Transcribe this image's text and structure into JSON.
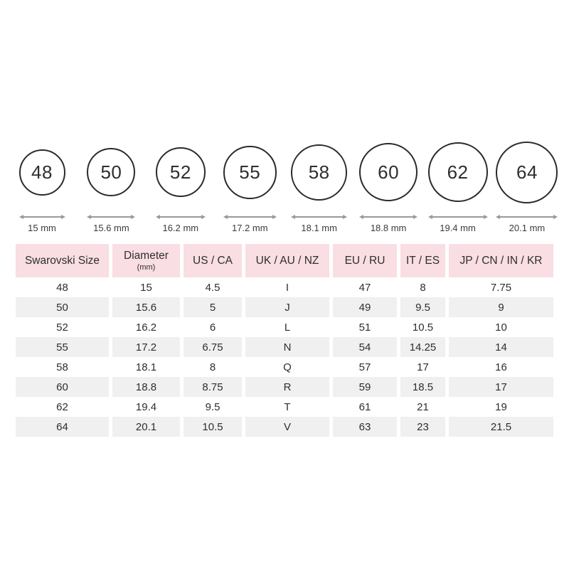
{
  "colors": {
    "header_bg": "#f9dee3",
    "alt_row_bg": "#f0f0f0",
    "circle_stroke": "#2b2b2b",
    "arrow": "#999999",
    "text": "#2e2e2e"
  },
  "rings": [
    {
      "size": "48",
      "diameter_mm": 15.0,
      "diameter_label": "15 mm"
    },
    {
      "size": "50",
      "diameter_mm": 15.6,
      "diameter_label": "15.6 mm"
    },
    {
      "size": "52",
      "diameter_mm": 16.2,
      "diameter_label": "16.2 mm"
    },
    {
      "size": "55",
      "diameter_mm": 17.2,
      "diameter_label": "17.2 mm"
    },
    {
      "size": "58",
      "diameter_mm": 18.1,
      "diameter_label": "18.1 mm"
    },
    {
      "size": "60",
      "diameter_mm": 18.8,
      "diameter_label": "18.8 mm"
    },
    {
      "size": "62",
      "diameter_mm": 19.4,
      "diameter_label": "19.4 mm"
    },
    {
      "size": "64",
      "diameter_mm": 20.1,
      "diameter_label": "20.1 mm"
    }
  ],
  "table": {
    "columns": [
      {
        "label": "Swarovski Size"
      },
      {
        "label": "Diameter",
        "sublabel": "(mm)"
      },
      {
        "label": "US / CA"
      },
      {
        "label": "UK / AU / NZ"
      },
      {
        "label": "EU / RU"
      },
      {
        "label": "IT / ES"
      },
      {
        "label": "JP / CN / IN / KR"
      }
    ]
  },
  "chart_data": {
    "type": "table",
    "columns": [
      "Swarovski Size",
      "Diameter (mm)",
      "US / CA",
      "UK / AU / NZ",
      "EU / RU",
      "IT / ES",
      "JP / CN / IN / KR"
    ],
    "rows": [
      [
        "48",
        "15",
        "4.5",
        "I",
        "47",
        "8",
        "7.75"
      ],
      [
        "50",
        "15.6",
        "5",
        "J",
        "49",
        "9.5",
        "9"
      ],
      [
        "52",
        "16.2",
        "6",
        "L",
        "51",
        "10.5",
        "10"
      ],
      [
        "55",
        "17.2",
        "6.75",
        "N",
        "54",
        "14.25",
        "14"
      ],
      [
        "58",
        "18.1",
        "8",
        "Q",
        "57",
        "17",
        "16"
      ],
      [
        "60",
        "18.8",
        "8.75",
        "R",
        "59",
        "18.5",
        "17"
      ],
      [
        "62",
        "19.4",
        "9.5",
        "T",
        "61",
        "21",
        "19"
      ],
      [
        "64",
        "20.1",
        "10.5",
        "V",
        "63",
        "23",
        "21.5"
      ]
    ],
    "ring_diagram": {
      "sizes": [
        48,
        50,
        52,
        55,
        58,
        60,
        62,
        64
      ],
      "diameters_mm": [
        15,
        15.6,
        16.2,
        17.2,
        18.1,
        18.8,
        19.4,
        20.1
      ]
    }
  }
}
